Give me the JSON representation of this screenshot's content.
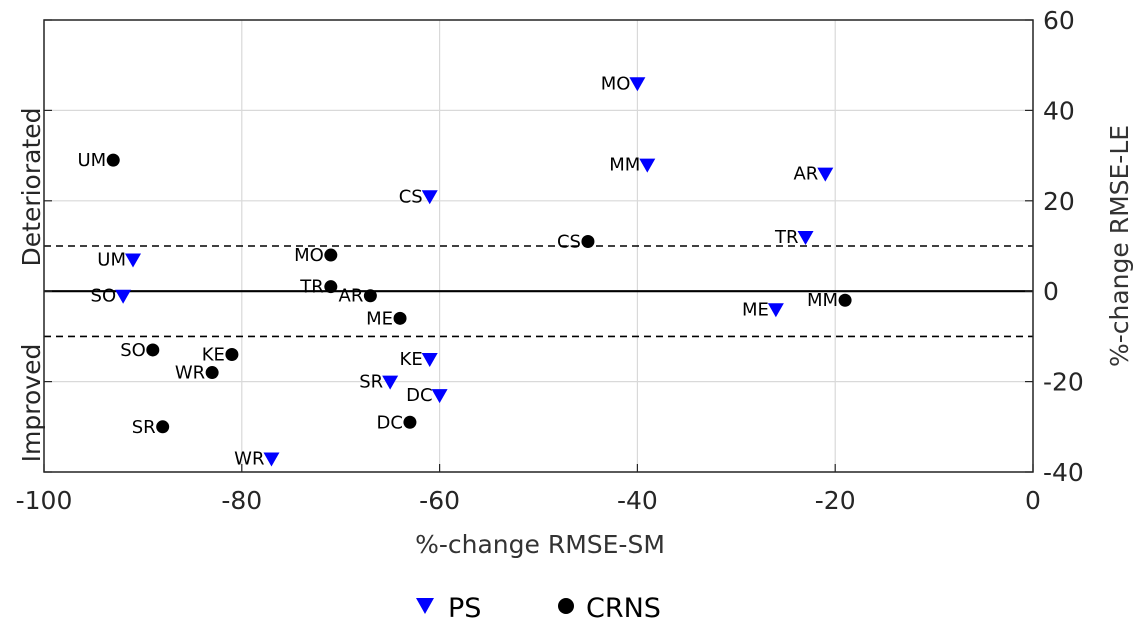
{
  "chart_data": {
    "type": "scatter",
    "xlabel": "%-change RMSE-SM",
    "ylabel": "%-change RMSE-LE",
    "xlim": [
      -100,
      0
    ],
    "ylim": [
      -40,
      60
    ],
    "x_ticks": [
      "-100",
      "-80",
      "-60",
      "-40",
      "-20",
      "0"
    ],
    "y_ticks": [
      "-40",
      "-20",
      "0",
      "20",
      "40",
      "60"
    ],
    "y_axis_side": "right",
    "grid": true,
    "reference_lines": {
      "solid": [
        0
      ],
      "dashed": [
        10,
        -10
      ]
    },
    "region_labels": [
      "Deteriorated",
      "Improved"
    ],
    "legend_position": "bottom-center",
    "series": [
      {
        "name": "PS",
        "marker": "triangle-down",
        "color": "#0000ff",
        "points": [
          {
            "label": "MO",
            "x": -40,
            "y": 46
          },
          {
            "label": "MM",
            "x": -39,
            "y": 28
          },
          {
            "label": "AR",
            "x": -21,
            "y": 26
          },
          {
            "label": "CS",
            "x": -61,
            "y": 21
          },
          {
            "label": "TR",
            "x": -23,
            "y": 12
          },
          {
            "label": "UM",
            "x": -91,
            "y": 7
          },
          {
            "label": "SO",
            "x": -92,
            "y": -1
          },
          {
            "label": "ME",
            "x": -26,
            "y": -4
          },
          {
            "label": "KE",
            "x": -61,
            "y": -15
          },
          {
            "label": "SR",
            "x": -65,
            "y": -20
          },
          {
            "label": "DC",
            "x": -60,
            "y": -23
          },
          {
            "label": "WR",
            "x": -77,
            "y": -37
          }
        ]
      },
      {
        "name": "CRNS",
        "marker": "circle",
        "color": "#000000",
        "points": [
          {
            "label": "UM",
            "x": -93,
            "y": 29
          },
          {
            "label": "CS",
            "x": -45,
            "y": 11
          },
          {
            "label": "MO",
            "x": -71,
            "y": 8
          },
          {
            "label": "TR",
            "x": -71,
            "y": 1
          },
          {
            "label": "AR",
            "x": -67,
            "y": -1
          },
          {
            "label": "MM",
            "x": -19,
            "y": -2
          },
          {
            "label": "ME",
            "x": -64,
            "y": -6
          },
          {
            "label": "SO",
            "x": -89,
            "y": -13
          },
          {
            "label": "KE",
            "x": -81,
            "y": -14
          },
          {
            "label": "WR",
            "x": -83,
            "y": -18
          },
          {
            "label": "SR",
            "x": -88,
            "y": -30
          },
          {
            "label": "DC",
            "x": -63,
            "y": -29
          }
        ]
      }
    ]
  }
}
